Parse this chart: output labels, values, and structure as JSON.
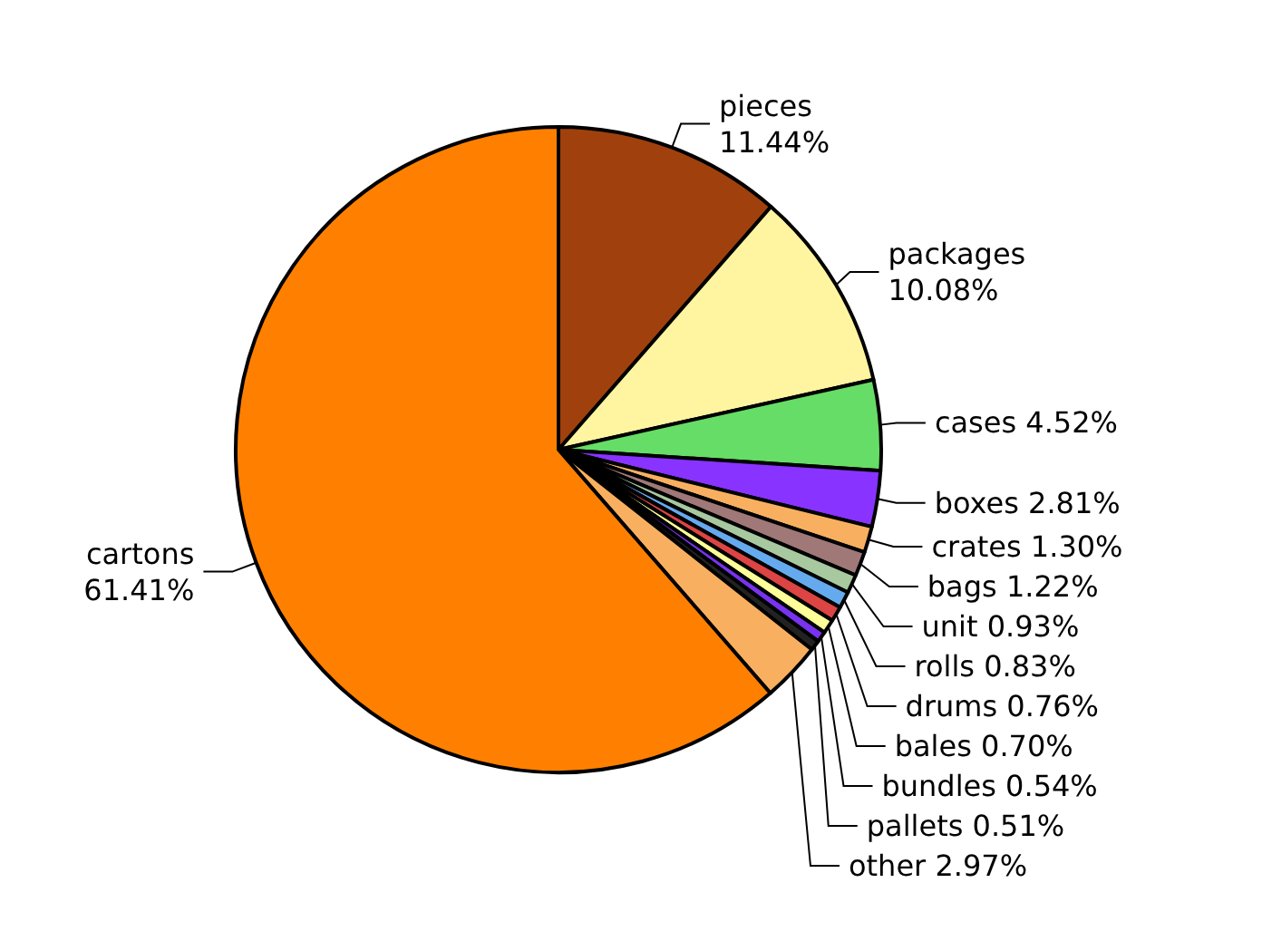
{
  "chart_data": {
    "type": "pie",
    "categories": [
      "pieces",
      "packages",
      "cases",
      "boxes",
      "crates",
      "bags",
      "unit",
      "rolls",
      "drums",
      "bales",
      "bundles",
      "pallets",
      "other",
      "cartons"
    ],
    "values": [
      11.44,
      10.08,
      4.52,
      2.81,
      1.3,
      1.22,
      0.93,
      0.83,
      0.76,
      0.7,
      0.54,
      0.51,
      2.97,
      61.41
    ],
    "value_labels": [
      "11.44%",
      "10.08%",
      "4.52%",
      "2.81%",
      "1.30%",
      "1.22%",
      "0.93%",
      "0.83%",
      "0.76%",
      "0.70%",
      "0.54%",
      "0.51%",
      "2.97%",
      "61.41%"
    ],
    "colors": [
      "#a0410d",
      "#fff5a0",
      "#66dd66",
      "#8833ff",
      "#f8b060",
      "#a07878",
      "#a8c8a0",
      "#66aaee",
      "#dd4444",
      "#ffff99",
      "#7733ee",
      "#222222",
      "#f8b060",
      "#ff8000"
    ],
    "legend": false
  }
}
